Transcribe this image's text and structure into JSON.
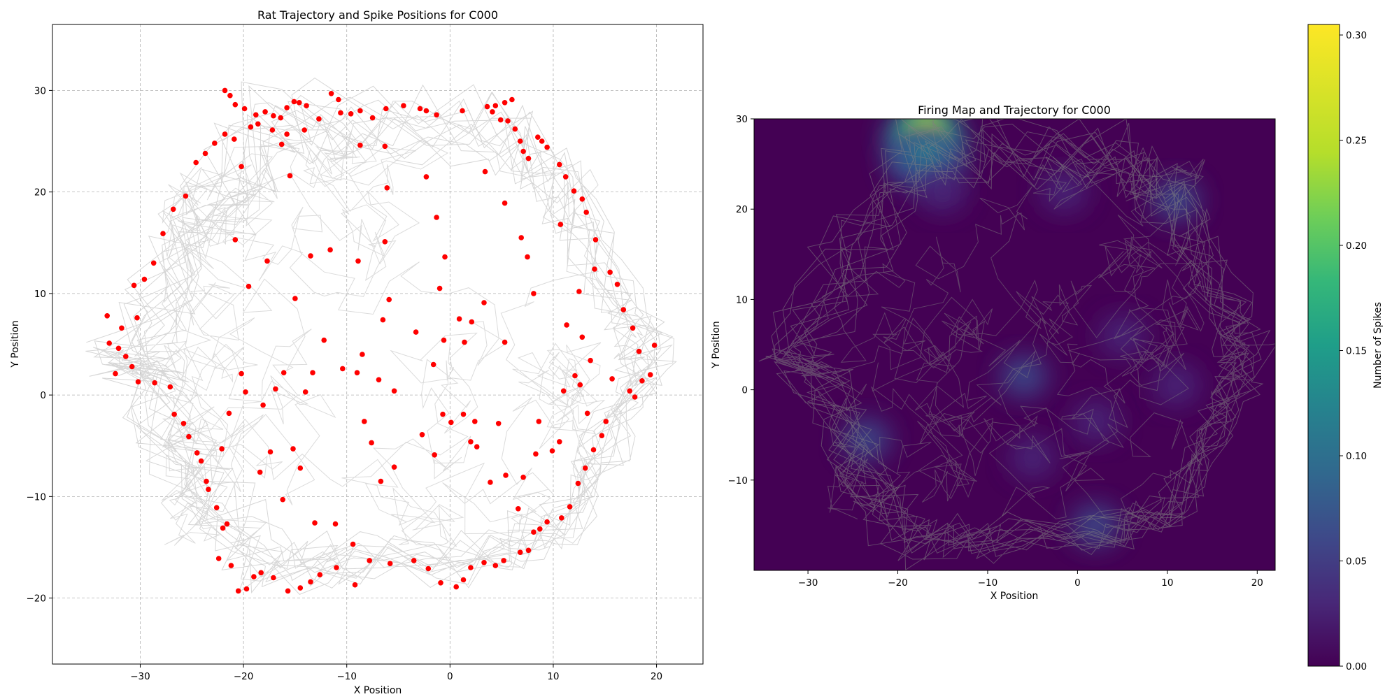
{
  "chart_data": [
    {
      "type": "scatter",
      "title": "Rat Trajectory and Spike Positions for  C000",
      "xlabel": "X Position",
      "ylabel": "Y Position",
      "xlim": [
        -38.5,
        24.5
      ],
      "ylim": [
        -26.5,
        36.5
      ],
      "xticks": [
        -30,
        -20,
        -10,
        0,
        10,
        20
      ],
      "yticks": [
        -20,
        -10,
        0,
        10,
        20,
        30
      ],
      "xtick_labels": [
        "−30",
        "−20",
        "−10",
        "0",
        "10",
        "20"
      ],
      "ytick_labels": [
        "−20",
        "−10",
        "0",
        "10",
        "20",
        "30"
      ],
      "grid": true,
      "series": [
        {
          "role": "trajectory",
          "kind": "line",
          "color": "#d3d3d3",
          "arena": "hexagon",
          "vertices": [
            [
              -35,
              5
            ],
            [
              -27,
              18
            ],
            [
              -20,
              29.5
            ],
            [
              -10,
              29.5
            ],
            [
              5,
              29.5
            ],
            [
              12,
              23
            ],
            [
              18,
              10
            ],
            [
              21,
              4
            ],
            [
              18,
              -3
            ],
            [
              12,
              -14
            ],
            [
              5,
              -17.5
            ],
            [
              -10,
              -18
            ],
            [
              -20,
              -19
            ],
            [
              -27,
              -10
            ],
            [
              -33,
              2
            ]
          ]
        },
        {
          "role": "spikes",
          "kind": "points",
          "color": "#ff0000",
          "points": [
            [
              -21.8,
              30.0
            ],
            [
              -21.3,
              29.5
            ],
            [
              -20.8,
              28.6
            ],
            [
              -19.9,
              28.2
            ],
            [
              -18.8,
              27.6
            ],
            [
              -17.9,
              27.9
            ],
            [
              -17.1,
              27.5
            ],
            [
              -16.4,
              27.3
            ],
            [
              -15.8,
              28.3
            ],
            [
              -15.1,
              28.9
            ],
            [
              -14.6,
              28.8
            ],
            [
              -13.9,
              28.5
            ],
            [
              -11.5,
              29.7
            ],
            [
              -10.8,
              29.1
            ],
            [
              -9.6,
              27.7
            ],
            [
              -8.7,
              28.0
            ],
            [
              -7.5,
              27.3
            ],
            [
              -6.2,
              28.2
            ],
            [
              -4.5,
              28.5
            ],
            [
              -2.9,
              28.2
            ],
            [
              -2.3,
              28.0
            ],
            [
              -1.3,
              27.6
            ],
            [
              1.2,
              28.0
            ],
            [
              3.6,
              28.4
            ],
            [
              4.1,
              27.9
            ],
            [
              4.4,
              28.5
            ],
            [
              4.9,
              27.1
            ],
            [
              5.3,
              28.8
            ],
            [
              6.0,
              29.1
            ],
            [
              5.6,
              27.0
            ],
            [
              6.3,
              26.2
            ],
            [
              6.8,
              25.0
            ],
            [
              7.1,
              24.0
            ],
            [
              7.6,
              23.3
            ],
            [
              8.5,
              25.4
            ],
            [
              8.9,
              25.0
            ],
            [
              9.4,
              24.4
            ],
            [
              10.6,
              22.7
            ],
            [
              11.2,
              21.5
            ],
            [
              12.0,
              20.1
            ],
            [
              12.8,
              19.3
            ],
            [
              13.2,
              18.0
            ],
            [
              14.1,
              15.3
            ],
            [
              14.0,
              12.4
            ],
            [
              15.5,
              12.1
            ],
            [
              16.2,
              10.9
            ],
            [
              16.8,
              8.4
            ],
            [
              17.7,
              6.6
            ],
            [
              18.3,
              4.3
            ],
            [
              19.4,
              2.0
            ],
            [
              18.6,
              1.4
            ],
            [
              19.8,
              4.9
            ],
            [
              17.9,
              -0.2
            ],
            [
              17.4,
              0.4
            ],
            [
              15.7,
              1.6
            ],
            [
              15.1,
              -2.6
            ],
            [
              14.7,
              -4.0
            ],
            [
              13.9,
              -5.4
            ],
            [
              13.1,
              -7.2
            ],
            [
              12.4,
              -8.7
            ],
            [
              11.6,
              -11.0
            ],
            [
              10.8,
              -12.1
            ],
            [
              9.4,
              -12.5
            ],
            [
              8.7,
              -13.2
            ],
            [
              8.1,
              -13.5
            ],
            [
              7.6,
              -15.3
            ],
            [
              6.8,
              -15.5
            ],
            [
              5.2,
              -16.3
            ],
            [
              4.4,
              -16.8
            ],
            [
              3.3,
              -16.5
            ],
            [
              2.0,
              -17.0
            ],
            [
              1.3,
              -18.2
            ],
            [
              0.6,
              -18.9
            ],
            [
              -0.9,
              -18.5
            ],
            [
              -2.1,
              -17.1
            ],
            [
              -3.5,
              -16.3
            ],
            [
              -5.8,
              -16.6
            ],
            [
              -7.8,
              -16.3
            ],
            [
              -9.2,
              -18.7
            ],
            [
              -11.0,
              -17.0
            ],
            [
              -12.6,
              -17.7
            ],
            [
              -13.5,
              -18.4
            ],
            [
              -14.5,
              -19.0
            ],
            [
              -15.7,
              -19.3
            ],
            [
              -17.1,
              -18.0
            ],
            [
              -18.3,
              -17.5
            ],
            [
              -19.0,
              -17.9
            ],
            [
              -19.7,
              -19.1
            ],
            [
              -20.5,
              -19.3
            ],
            [
              -21.2,
              -16.8
            ],
            [
              -22.4,
              -16.1
            ],
            [
              -22.0,
              -13.1
            ],
            [
              -21.6,
              -12.7
            ],
            [
              -22.6,
              -11.1
            ],
            [
              -23.4,
              -9.3
            ],
            [
              -23.6,
              -8.5
            ],
            [
              -24.1,
              -6.5
            ],
            [
              -24.5,
              -5.7
            ],
            [
              -25.3,
              -4.1
            ],
            [
              -25.8,
              -2.8
            ],
            [
              -26.7,
              -1.9
            ],
            [
              -27.1,
              0.8
            ],
            [
              -28.6,
              1.2
            ],
            [
              -30.2,
              1.3
            ],
            [
              -30.8,
              2.8
            ],
            [
              -31.4,
              3.8
            ],
            [
              -32.1,
              4.6
            ],
            [
              -33.0,
              5.1
            ],
            [
              -32.4,
              2.1
            ],
            [
              -33.2,
              7.8
            ],
            [
              -31.8,
              6.6
            ],
            [
              -30.3,
              7.6
            ],
            [
              -30.6,
              10.8
            ],
            [
              -29.6,
              11.4
            ],
            [
              -28.7,
              13.0
            ],
            [
              -27.8,
              15.9
            ],
            [
              -26.8,
              18.3
            ],
            [
              -25.6,
              19.6
            ],
            [
              -24.6,
              22.9
            ],
            [
              -23.7,
              23.8
            ],
            [
              -22.8,
              24.8
            ],
            [
              -21.8,
              25.7
            ],
            [
              -20.9,
              25.2
            ],
            [
              -20.2,
              22.5
            ],
            [
              -19.3,
              26.4
            ],
            [
              -18.6,
              26.7
            ],
            [
              -17.2,
              26.1
            ],
            [
              -16.3,
              24.7
            ],
            [
              -15.8,
              25.7
            ],
            [
              -15.5,
              21.6
            ],
            [
              -14.1,
              26.1
            ],
            [
              -12.7,
              27.2
            ],
            [
              -10.6,
              27.8
            ],
            [
              -8.7,
              24.6
            ],
            [
              -6.3,
              24.5
            ],
            [
              -6.1,
              20.4
            ],
            [
              -2.3,
              21.5
            ],
            [
              -1.3,
              17.5
            ],
            [
              3.4,
              22.0
            ],
            [
              5.3,
              18.9
            ],
            [
              6.9,
              15.5
            ],
            [
              7.5,
              13.6
            ],
            [
              8.1,
              10.0
            ],
            [
              10.7,
              16.8
            ],
            [
              12.5,
              10.2
            ],
            [
              11.3,
              6.9
            ],
            [
              12.8,
              5.7
            ],
            [
              13.6,
              3.4
            ],
            [
              12.1,
              1.9
            ],
            [
              11.0,
              0.4
            ],
            [
              12.6,
              1.0
            ],
            [
              13.3,
              -1.8
            ],
            [
              10.6,
              -4.6
            ],
            [
              9.9,
              -5.5
            ],
            [
              8.6,
              -2.6
            ],
            [
              8.3,
              -5.8
            ],
            [
              7.1,
              -8.1
            ],
            [
              6.6,
              -11.2
            ],
            [
              5.4,
              -7.9
            ],
            [
              3.9,
              -8.6
            ],
            [
              5.3,
              5.2
            ],
            [
              3.3,
              9.1
            ],
            [
              2.1,
              7.2
            ],
            [
              0.9,
              7.5
            ],
            [
              1.4,
              5.2
            ],
            [
              -0.6,
              5.4
            ],
            [
              -1.6,
              3.0
            ],
            [
              -3.3,
              6.2
            ],
            [
              -5.4,
              0.4
            ],
            [
              -5.9,
              9.4
            ],
            [
              -6.5,
              7.4
            ],
            [
              -6.9,
              1.5
            ],
            [
              -8.5,
              4.0
            ],
            [
              -9.0,
              2.2
            ],
            [
              -10.4,
              2.6
            ],
            [
              -12.2,
              5.4
            ],
            [
              -13.3,
              2.2
            ],
            [
              -14.0,
              0.3
            ],
            [
              -15.2,
              -5.3
            ],
            [
              -16.1,
              2.2
            ],
            [
              -16.9,
              0.6
            ],
            [
              -18.1,
              -1.0
            ],
            [
              -19.8,
              0.3
            ],
            [
              -20.2,
              2.1
            ],
            [
              -21.4,
              -1.8
            ],
            [
              -22.1,
              -5.3
            ],
            [
              -18.4,
              -7.6
            ],
            [
              -17.4,
              -5.6
            ],
            [
              -16.2,
              -10.3
            ],
            [
              -14.5,
              -7.2
            ],
            [
              -13.1,
              -12.6
            ],
            [
              -11.1,
              -12.7
            ],
            [
              -9.4,
              -14.7
            ],
            [
              -8.3,
              -2.6
            ],
            [
              -7.6,
              -4.7
            ],
            [
              -6.7,
              -8.5
            ],
            [
              -5.4,
              -7.1
            ],
            [
              -2.7,
              -3.9
            ],
            [
              -1.5,
              -5.9
            ],
            [
              0.1,
              -2.7
            ],
            [
              1.3,
              -1.9
            ],
            [
              2.4,
              -2.6
            ],
            [
              2.6,
              -5.1
            ],
            [
              4.7,
              -2.8
            ],
            [
              2.0,
              -4.6
            ],
            [
              -0.7,
              -1.9
            ],
            [
              -13.5,
              13.7
            ],
            [
              -11.6,
              14.3
            ],
            [
              -17.7,
              13.2
            ],
            [
              -19.5,
              10.7
            ],
            [
              -20.8,
              15.3
            ],
            [
              -15.0,
              9.5
            ],
            [
              -8.9,
              13.2
            ],
            [
              -6.3,
              15.1
            ],
            [
              -1.0,
              10.5
            ],
            [
              -0.5,
              13.6
            ]
          ]
        }
      ]
    },
    {
      "type": "heatmap",
      "title": "Firing Map and Trajectory for  C000",
      "xlabel": "X Position",
      "ylabel": "Y Position",
      "xlim": [
        -36,
        22
      ],
      "ylim": [
        -20,
        30
      ],
      "xticks": [
        -30,
        -20,
        -10,
        0,
        10,
        20
      ],
      "yticks": [
        -10,
        0,
        10,
        20,
        30
      ],
      "xtick_labels": [
        "−30",
        "−20",
        "−10",
        "0",
        "10",
        "20"
      ],
      "ytick_labels": [
        "−10",
        "0",
        "10",
        "20",
        "30"
      ],
      "colormap": "viridis",
      "colorbar": {
        "label": "Number of Spikes",
        "range": [
          0.0,
          0.305
        ],
        "ticks": [
          0.0,
          0.05,
          0.1,
          0.15,
          0.2,
          0.25,
          0.3
        ],
        "tick_labels": [
          "0.00",
          "0.05",
          "0.10",
          "0.15",
          "0.20",
          "0.25",
          "0.30"
        ]
      },
      "hotspots": [
        {
          "x": -17,
          "y": 28.5,
          "value": 0.305
        },
        {
          "x": 11,
          "y": 21,
          "value": 0.06
        },
        {
          "x": -17,
          "y": 26,
          "value": 0.12
        },
        {
          "x": -6,
          "y": 1.5,
          "value": 0.055
        },
        {
          "x": -23.5,
          "y": -5.5,
          "value": 0.055
        },
        {
          "x": 2,
          "y": -15,
          "value": 0.07
        },
        {
          "x": 2,
          "y": -3.5,
          "value": 0.05
        },
        {
          "x": -5,
          "y": -7.5,
          "value": 0.04
        },
        {
          "x": 5,
          "y": 6,
          "value": 0.035
        },
        {
          "x": 11,
          "y": 0.5,
          "value": 0.04
        },
        {
          "x": -15,
          "y": 22,
          "value": 0.025
        },
        {
          "x": -1.5,
          "y": 22,
          "value": 0.02
        }
      ],
      "trajectory_color": "#808080"
    }
  ]
}
